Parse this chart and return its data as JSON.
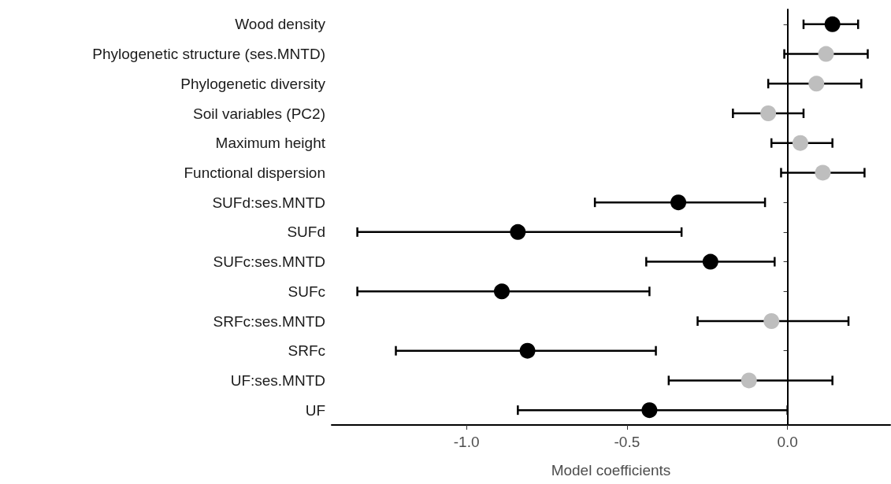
{
  "chart_data": {
    "type": "scatter",
    "orientation": "horizontal",
    "xlabel": "Model coefficients",
    "categories": [
      "Wood density",
      "Phylogenetic structure (ses.MNTD)",
      "Phylogenetic diversity",
      "Soil variables (PC2)",
      "Maximum height",
      "Functional dispersion",
      "SUFd:ses.MNTD",
      "SUFd",
      "SUFc:ses.MNTD",
      "SUFc",
      "SRFc:ses.MNTD",
      "SRFc",
      "UF:ses.MNTD",
      "UF"
    ],
    "values": [
      0.14,
      0.12,
      0.09,
      -0.06,
      0.04,
      0.11,
      -0.34,
      -0.84,
      -0.24,
      -0.89,
      -0.05,
      -0.81,
      -0.12,
      -0.43
    ],
    "errors": [
      [
        0.05,
        0.22
      ],
      [
        -0.01,
        0.25
      ],
      [
        -0.06,
        0.23
      ],
      [
        -0.17,
        0.05
      ],
      [
        -0.05,
        0.14
      ],
      [
        -0.02,
        0.24
      ],
      [
        -0.6,
        -0.07
      ],
      [
        -1.34,
        -0.33
      ],
      [
        -0.44,
        -0.04
      ],
      [
        -1.34,
        -0.43
      ],
      [
        -0.28,
        0.19
      ],
      [
        -1.22,
        -0.41
      ],
      [
        -0.37,
        0.14
      ],
      [
        -0.84,
        0
      ]
    ],
    "colors": [
      "#000000",
      "#bebebe",
      "#bebebe",
      "#bebebe",
      "#bebebe",
      "#bebebe",
      "#000000",
      "#000000",
      "#000000",
      "#000000",
      "#bebebe",
      "#000000",
      "#bebebe",
      "#000000"
    ],
    "marker": "circle",
    "grid": false,
    "xlim": [
      -1.42,
      0.32
    ],
    "xticks": [
      {
        "value": -1,
        "label": "-1.0"
      },
      {
        "value": -0.5,
        "label": "-0.5"
      },
      {
        "value": 0,
        "label": "0.0"
      }
    ],
    "ref_lines": [
      {
        "axis": "x",
        "value": 0,
        "label": null,
        "color": "#000000",
        "line_style": "dashed"
      }
    ]
  }
}
